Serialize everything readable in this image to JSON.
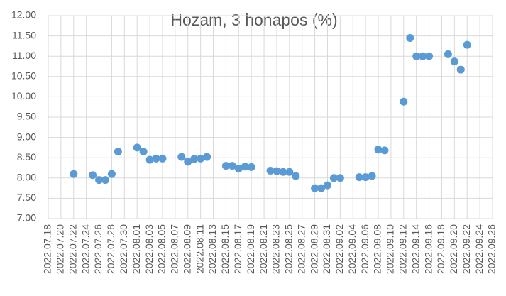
{
  "chart_data": {
    "type": "scatter",
    "title": "Hozam, 3 honapos (%)",
    "color": "#5b9bd5",
    "grid": true,
    "x": [
      "2022.07.22",
      "2022.07.25",
      "2022.07.26",
      "2022.07.27",
      "2022.07.28",
      "2022.07.29",
      "2022.08.01",
      "2022.08.02",
      "2022.08.03",
      "2022.08.04",
      "2022.08.05",
      "2022.08.08",
      "2022.08.09",
      "2022.08.10",
      "2022.08.11",
      "2022.08.12",
      "2022.08.15",
      "2022.08.16",
      "2022.08.17",
      "2022.08.18",
      "2022.08.19",
      "2022.08.22",
      "2022.08.23",
      "2022.08.24",
      "2022.08.25",
      "2022.08.26",
      "2022.08.29",
      "2022.08.30",
      "2022.08.31",
      "2022.09.01",
      "2022.09.02",
      "2022.09.05",
      "2022.09.06",
      "2022.09.07",
      "2022.09.08",
      "2022.09.09",
      "2022.09.12",
      "2022.09.13",
      "2022.09.14",
      "2022.09.15",
      "2022.09.16",
      "2022.09.19",
      "2022.09.20",
      "2022.09.21",
      "2022.09.22"
    ],
    "values": [
      8.1,
      8.07,
      7.95,
      7.95,
      8.1,
      8.65,
      8.75,
      8.65,
      8.45,
      8.48,
      8.48,
      8.52,
      8.4,
      8.47,
      8.48,
      8.52,
      8.3,
      8.3,
      8.23,
      8.28,
      8.27,
      8.18,
      8.17,
      8.15,
      8.15,
      8.05,
      7.75,
      7.75,
      7.82,
      8.0,
      8.0,
      8.02,
      8.02,
      8.05,
      8.7,
      8.68,
      9.88,
      11.45,
      11.0,
      11.0,
      11.0,
      11.05,
      10.87,
      10.67,
      11.28
    ],
    "xlim": [
      "2022.07.18",
      "2022.09.26"
    ],
    "xticks": [
      "2022.07.18",
      "2022.07.20",
      "2022.07.22",
      "2022.07.24",
      "2022.07.26",
      "2022.07.28",
      "2022.07.30",
      "2022.08.01",
      "2022.08.03",
      "2022.08.05",
      "2022.08.07",
      "2022.08.09",
      "2022.08.11",
      "2022.08.13",
      "2022.08.15",
      "2022.08.17",
      "2022.08.19",
      "2022.08.21",
      "2022.08.23",
      "2022.08.25",
      "2022.08.27",
      "2022.08.29",
      "2022.08.31",
      "2022.09.02",
      "2022.09.04",
      "2022.09.06",
      "2022.09.08",
      "2022.09.10",
      "2022.09.12",
      "2022.09.14",
      "2022.09.16",
      "2022.09.18",
      "2022.09.20",
      "2022.09.22",
      "2022.09.24",
      "2022.09.26"
    ],
    "ylim": [
      7,
      12
    ],
    "yticks": [
      {
        "value": 7,
        "label": "7.00"
      },
      {
        "value": 7.5,
        "label": "7.50"
      },
      {
        "value": 8,
        "label": "8.00"
      },
      {
        "value": 8.5,
        "label": "8.50"
      },
      {
        "value": 9,
        "label": "9.00"
      },
      {
        "value": 9.5,
        "label": "9.50"
      },
      {
        "value": 10,
        "label": "10.00"
      },
      {
        "value": 10.5,
        "label": "10.50"
      },
      {
        "value": 11,
        "label": "11.00"
      },
      {
        "value": 11.5,
        "label": "11.50"
      },
      {
        "value": 12,
        "label": "12.00"
      }
    ]
  }
}
